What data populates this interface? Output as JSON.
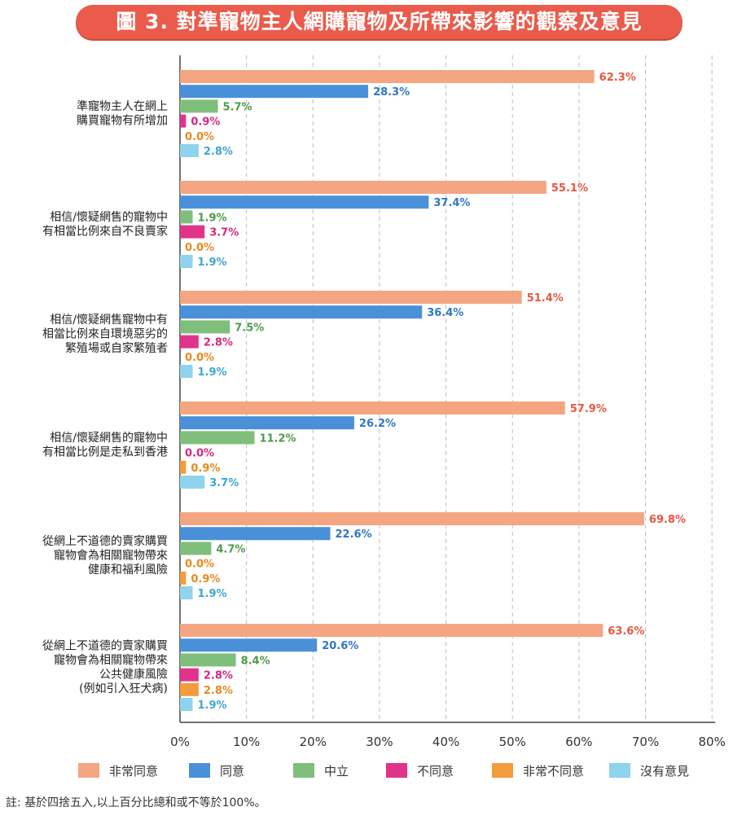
{
  "title": "圖 3. 對準寵物主人網購寵物及所帶來影響的觀察及意見",
  "note": "註: 基於四捨五入,以上百分比總和或不等於100%。",
  "colors": {
    "非常同意": "#f4a582",
    "同意": "#4a90d9",
    "中立": "#7fbf7b",
    "不同意": "#e0348c",
    "非常不同意": "#f39c3b",
    "沒有意見": "#8fd3ec",
    "label_非常同意": "#e8573f",
    "label_同意": "#2f77c3",
    "label_中立": "#4e9a4a",
    "label_不同意": "#d6287e",
    "label_非常不同意": "#e8891f",
    "label_沒有意見": "#3da6d1"
  },
  "chart_data": {
    "type": "bar",
    "orientation": "horizontal",
    "categories": [
      [
        "準寵物主人在網上",
        "購買寵物有所增加"
      ],
      [
        "相信/懷疑網售的寵物中",
        "有相當比例來自不良賣家"
      ],
      [
        "相信/懷疑網售寵物中有",
        "相當比例來自環境惡劣的",
        "繁殖場或自家繁殖者"
      ],
      [
        "相信/懷疑網售的寵物中",
        "有相當比例是走私到香港"
      ],
      [
        "從網上不道德的賣家購買",
        "寵物會為相關寵物帶來",
        "健康和福利風險"
      ],
      [
        "從網上不道德的賣家購買",
        "寵物會為相關寵物帶來",
        "公共健康風險",
        "(例如引入狂犬病)"
      ]
    ],
    "series": [
      {
        "name": "非常同意",
        "values": [
          62.3,
          55.1,
          51.4,
          57.9,
          69.8,
          63.6
        ]
      },
      {
        "name": "同意",
        "values": [
          28.3,
          37.4,
          36.4,
          26.2,
          22.6,
          20.6
        ]
      },
      {
        "name": "中立",
        "values": [
          5.7,
          1.9,
          7.5,
          11.2,
          4.7,
          8.4
        ]
      },
      {
        "name": "不同意",
        "values": [
          0.9,
          3.7,
          2.8,
          0.0,
          0.0,
          2.8
        ]
      },
      {
        "name": "非常不同意",
        "values": [
          0.0,
          0.0,
          0.0,
          0.9,
          0.9,
          2.8
        ]
      },
      {
        "name": "沒有意見",
        "values": [
          2.8,
          1.9,
          1.9,
          3.7,
          1.9,
          1.9
        ]
      }
    ],
    "labels": [
      [
        "62.3%",
        "28.3%",
        "5.7%",
        "0.9%",
        "0.0%",
        "2.8%"
      ],
      [
        "55.1%",
        "37.4%",
        "1.9%",
        "3.7%",
        "0.0%",
        "1.9%"
      ],
      [
        "51.4%",
        "36.4%",
        "7.5%",
        "2.8%",
        "0.0%",
        "1.9%"
      ],
      [
        "57.9%",
        "26.2%",
        "11.2%",
        "0.0%",
        "0.9%",
        "3.7%"
      ],
      [
        "69.8%",
        "22.6%",
        "4.7%",
        "0.0%",
        "0.9%",
        "1.9%"
      ],
      [
        "63.6%",
        "20.6%",
        "8.4%",
        "2.8%",
        "2.8%",
        "1.9%"
      ]
    ],
    "label_colors": [
      [
        "非常同意",
        "同意",
        "中立",
        "不同意",
        "非常不同意",
        "沒有意見"
      ],
      [
        "非常同意",
        "同意",
        "中立",
        "不同意",
        "非常不同意",
        "沒有意見"
      ],
      [
        "非常同意",
        "同意",
        "中立",
        "不同意",
        "非常不同意",
        "沒有意見"
      ],
      [
        "非常同意",
        "同意",
        "中立",
        "不同意",
        "非常不同意",
        "沒有意見"
      ],
      [
        "非常同意",
        "同意",
        "中立",
        "非常不同意",
        "非常不同意",
        "沒有意見"
      ],
      [
        "非常同意",
        "同意",
        "中立",
        "不同意",
        "非常不同意",
        "沒有意見"
      ]
    ],
    "xlim": [
      0,
      80
    ],
    "xticks": [
      0,
      10,
      20,
      30,
      40,
      50,
      60,
      70,
      80
    ],
    "xtick_labels": [
      "0%",
      "10%",
      "20%",
      "30%",
      "40%",
      "50%",
      "60%",
      "70%",
      "80%"
    ],
    "grid": true,
    "legend": [
      "非常同意",
      "同意",
      "中立",
      "不同意",
      "非常不同意",
      "沒有意見"
    ],
    "legend_position": "bottom"
  }
}
